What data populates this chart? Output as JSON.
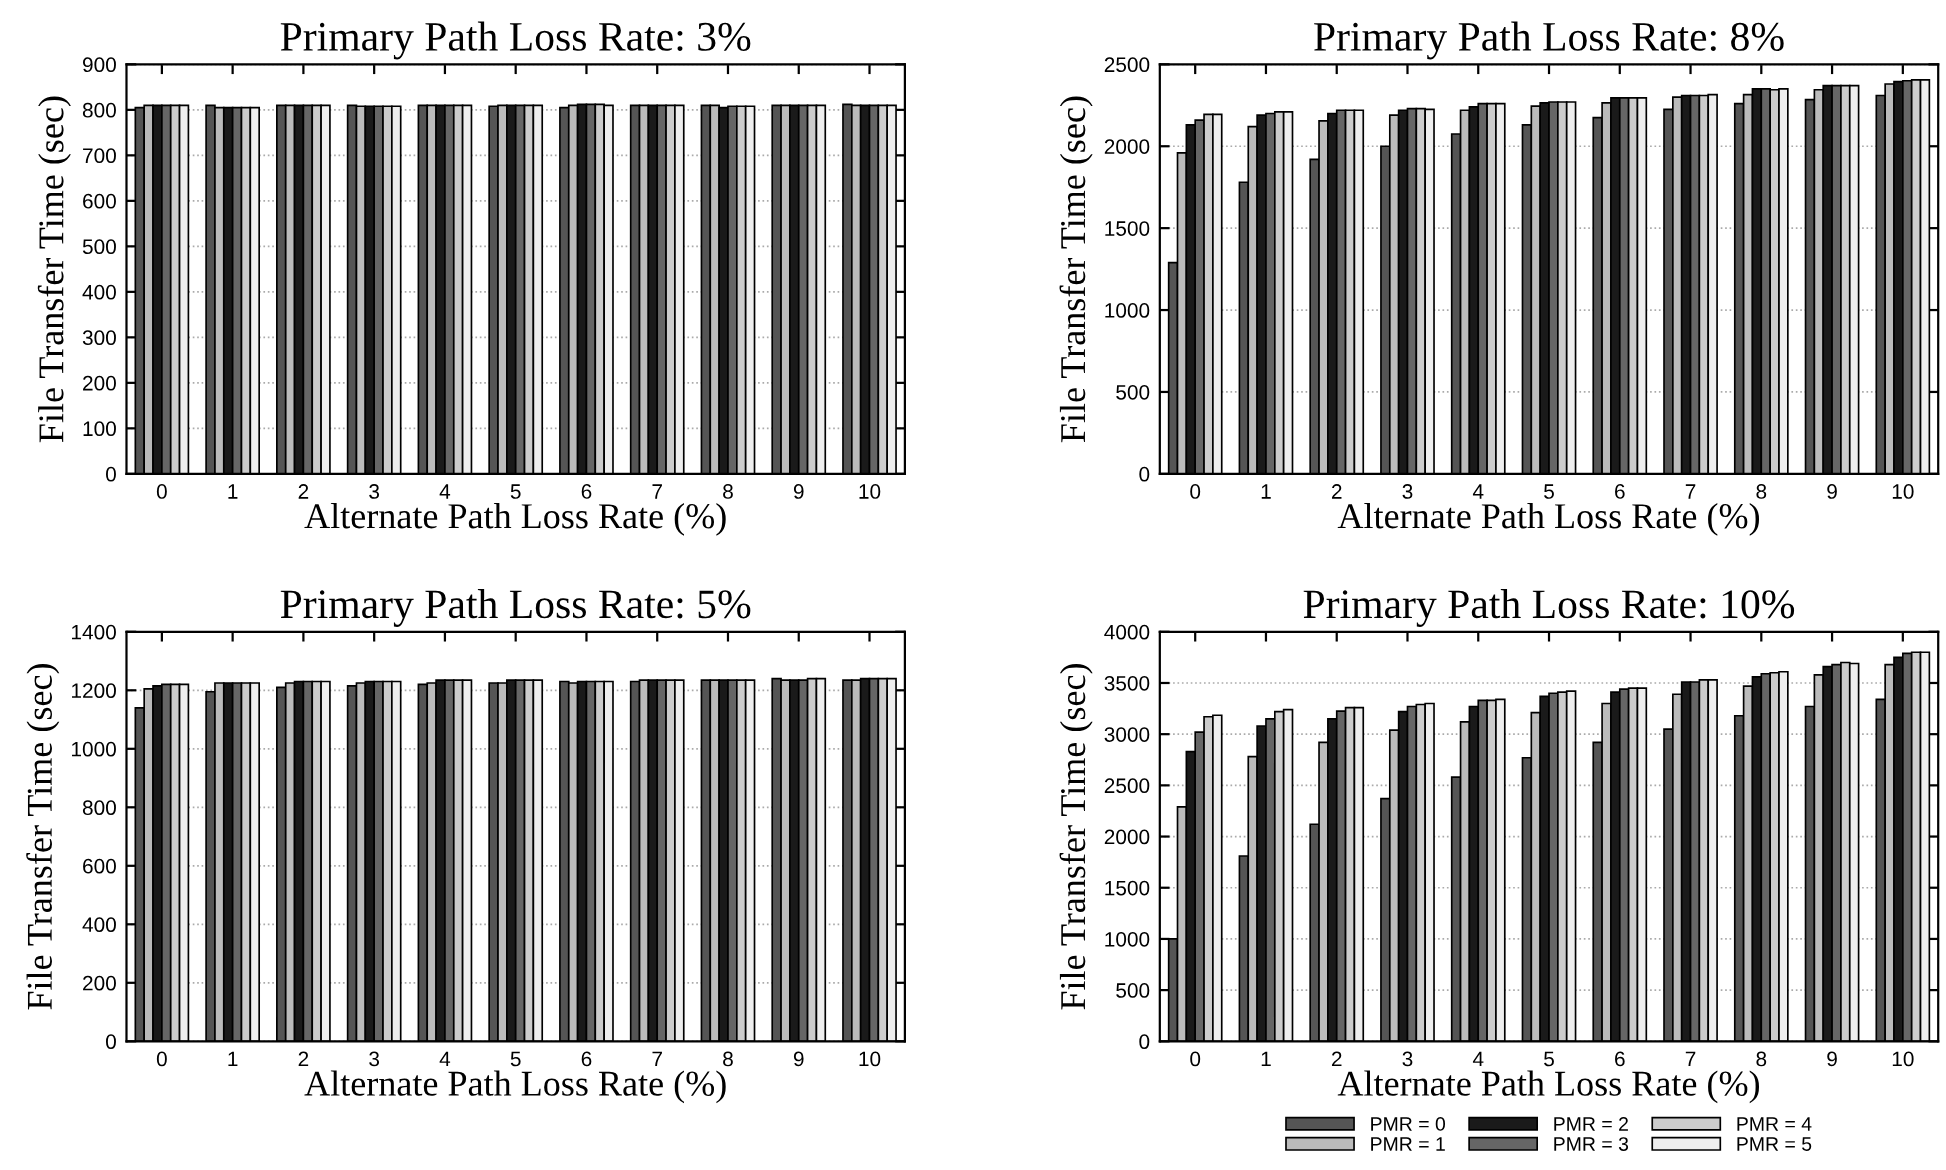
{
  "chart_data": [
    {
      "type": "bar",
      "title": "Primary Path Loss Rate: 3%",
      "xlabel": "Alternate Path Loss Rate (%)",
      "ylabel": "File Transfer Time (sec)",
      "categories": [
        "0",
        "1",
        "2",
        "3",
        "4",
        "5",
        "6",
        "7",
        "8",
        "9",
        "10"
      ],
      "ylim": [
        0,
        900
      ],
      "yticks": [
        0,
        100,
        200,
        300,
        400,
        500,
        600,
        700,
        800,
        900
      ],
      "grid": "y",
      "series": [
        {
          "color": "#555555",
          "values": [
            805,
            810,
            810,
            810,
            810,
            808,
            805,
            810,
            810,
            810,
            812
          ]
        },
        {
          "color": "#bbbbbb",
          "values": [
            810,
            805,
            810,
            808,
            810,
            810,
            810,
            810,
            810,
            810,
            810
          ]
        },
        {
          "color": "#1a1a1a",
          "values": [
            810,
            805,
            810,
            808,
            810,
            810,
            812,
            810,
            805,
            810,
            810
          ]
        },
        {
          "color": "#666666",
          "values": [
            810,
            805,
            810,
            808,
            810,
            810,
            812,
            810,
            808,
            810,
            810
          ]
        },
        {
          "color": "#cccccc",
          "values": [
            810,
            805,
            810,
            808,
            810,
            810,
            812,
            810,
            808,
            810,
            810
          ]
        },
        {
          "color": "#eeeeee",
          "values": [
            810,
            805,
            810,
            808,
            810,
            810,
            810,
            810,
            808,
            810,
            810
          ]
        }
      ]
    },
    {
      "type": "bar",
      "title": "Primary Path Loss Rate: 8%",
      "xlabel": "Alternate Path Loss Rate (%)",
      "ylabel": "File Transfer Time (sec)",
      "categories": [
        "0",
        "1",
        "2",
        "3",
        "4",
        "5",
        "6",
        "7",
        "8",
        "9",
        "10"
      ],
      "ylim": [
        0,
        2500
      ],
      "yticks": [
        0,
        500,
        1000,
        1500,
        2000,
        2500
      ],
      "grid": "y",
      "series": [
        {
          "color": "#555555",
          "values": [
            1290,
            1780,
            1920,
            2000,
            2075,
            2130,
            2175,
            2225,
            2260,
            2285,
            2310
          ]
        },
        {
          "color": "#bbbbbb",
          "values": [
            1960,
            2120,
            2155,
            2190,
            2220,
            2245,
            2265,
            2300,
            2315,
            2345,
            2380
          ]
        },
        {
          "color": "#1a1a1a",
          "values": [
            2130,
            2190,
            2200,
            2220,
            2240,
            2265,
            2295,
            2310,
            2350,
            2370,
            2395
          ]
        },
        {
          "color": "#666666",
          "values": [
            2160,
            2200,
            2220,
            2230,
            2260,
            2270,
            2295,
            2310,
            2350,
            2370,
            2400
          ]
        },
        {
          "color": "#cccccc",
          "values": [
            2195,
            2210,
            2220,
            2230,
            2260,
            2270,
            2295,
            2310,
            2345,
            2370,
            2405
          ]
        },
        {
          "color": "#eeeeee",
          "values": [
            2195,
            2210,
            2220,
            2225,
            2260,
            2270,
            2295,
            2315,
            2350,
            2370,
            2405
          ]
        }
      ]
    },
    {
      "type": "bar",
      "title": "Primary Path Loss Rate: 5%",
      "xlabel": "Alternate Path Loss Rate (%)",
      "ylabel": "File Transfer Time (sec)",
      "categories": [
        "0",
        "1",
        "2",
        "3",
        "4",
        "5",
        "6",
        "7",
        "8",
        "9",
        "10"
      ],
      "ylim": [
        0,
        1400
      ],
      "yticks": [
        0,
        200,
        400,
        600,
        800,
        1000,
        1200,
        1400
      ],
      "grid": "y",
      "series": [
        {
          "color": "#555555",
          "values": [
            1140,
            1195,
            1210,
            1215,
            1220,
            1225,
            1230,
            1230,
            1235,
            1240,
            1235
          ]
        },
        {
          "color": "#bbbbbb",
          "values": [
            1205,
            1225,
            1225,
            1225,
            1225,
            1225,
            1225,
            1235,
            1235,
            1235,
            1235
          ]
        },
        {
          "color": "#1a1a1a",
          "values": [
            1215,
            1225,
            1230,
            1230,
            1235,
            1235,
            1230,
            1235,
            1235,
            1235,
            1240
          ]
        },
        {
          "color": "#666666",
          "values": [
            1220,
            1225,
            1230,
            1230,
            1235,
            1235,
            1230,
            1235,
            1235,
            1235,
            1240
          ]
        },
        {
          "color": "#cccccc",
          "values": [
            1220,
            1225,
            1230,
            1230,
            1235,
            1235,
            1230,
            1235,
            1235,
            1240,
            1240
          ]
        },
        {
          "color": "#eeeeee",
          "values": [
            1220,
            1225,
            1230,
            1230,
            1235,
            1235,
            1230,
            1235,
            1235,
            1240,
            1240
          ]
        }
      ]
    },
    {
      "type": "bar",
      "title": "Primary Path Loss Rate: 10%",
      "xlabel": "Alternate Path Loss Rate (%)",
      "ylabel": "File Transfer Time (sec)",
      "categories": [
        "0",
        "1",
        "2",
        "3",
        "4",
        "5",
        "6",
        "7",
        "8",
        "9",
        "10"
      ],
      "ylim": [
        0,
        4000
      ],
      "yticks": [
        0,
        500,
        1000,
        1500,
        2000,
        2500,
        3000,
        3500,
        4000
      ],
      "grid": "y",
      "legend": "bottom",
      "series": [
        {
          "name": "PMR = 0",
          "color": "#555555",
          "values": [
            1000,
            1810,
            2120,
            2370,
            2580,
            2770,
            2920,
            3050,
            3180,
            3270,
            3340
          ]
        },
        {
          "name": "PMR = 1",
          "color": "#bbbbbb",
          "values": [
            2290,
            2780,
            2920,
            3040,
            3120,
            3210,
            3300,
            3390,
            3470,
            3580,
            3680
          ]
        },
        {
          "name": "PMR = 2",
          "color": "#1a1a1a",
          "values": [
            2830,
            3080,
            3150,
            3220,
            3270,
            3370,
            3410,
            3510,
            3560,
            3660,
            3750
          ]
        },
        {
          "name": "PMR = 3",
          "color": "#666666",
          "values": [
            3020,
            3150,
            3225,
            3270,
            3330,
            3400,
            3440,
            3510,
            3590,
            3680,
            3790
          ]
        },
        {
          "name": "PMR = 4",
          "color": "#cccccc",
          "values": [
            3170,
            3220,
            3260,
            3290,
            3330,
            3410,
            3450,
            3530,
            3600,
            3700,
            3800
          ]
        },
        {
          "name": "PMR = 5",
          "color": "#eeeeee",
          "values": [
            3185,
            3240,
            3260,
            3300,
            3340,
            3420,
            3450,
            3530,
            3610,
            3690,
            3800
          ]
        }
      ]
    }
  ]
}
